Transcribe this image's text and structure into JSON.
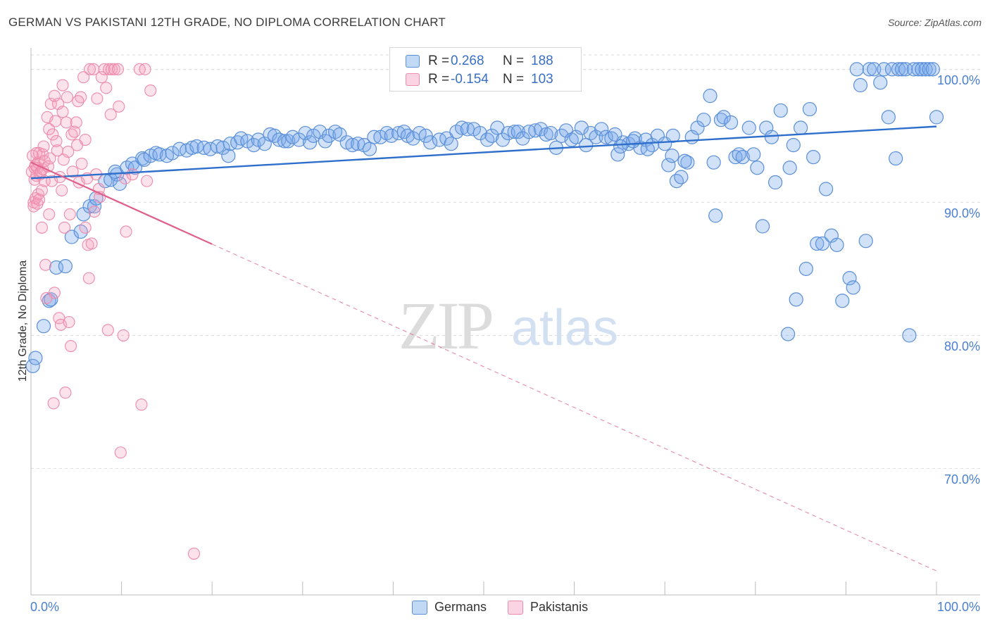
{
  "title": "GERMAN VS PAKISTANI 12TH GRADE, NO DIPLOMA CORRELATION CHART",
  "source": "Source: ZipAtlas.com",
  "watermark": {
    "zip": "ZIP",
    "atlas": "atlas"
  },
  "colors": {
    "german_fill": "rgba(120,170,235,0.35)",
    "german_stroke": "#5b8fd8",
    "german_line": "#2f6fcc",
    "pakistani_fill": "rgba(245,160,190,0.30)",
    "pakistani_stroke": "#ee8aaa",
    "pakistani_line": "#e0608c",
    "tick_label": "#4a7fd0",
    "grid": "#dcdcdc"
  },
  "legend": {
    "rows": [
      {
        "r_label": "R =",
        "r_value": "0.268",
        "n_label": "N =",
        "n_value": "188",
        "series": "german"
      },
      {
        "r_label": "R =",
        "r_value": "-0.154",
        "n_label": "N =",
        "n_value": "103",
        "series": "pakistani"
      }
    ]
  },
  "bottom_legend": [
    "Germans",
    "Pakistanis"
  ],
  "chart_data": {
    "type": "scatter",
    "xlabel": "",
    "ylabel": "12th Grade, No Diploma",
    "xlim": [
      0,
      100
    ],
    "ylim": [
      60.5,
      101.5
    ],
    "x_tick_labels": [
      "0.0%",
      "100.0%"
    ],
    "y_ticks": [
      70,
      80,
      90,
      100
    ],
    "y_tick_labels": [
      "70.0%",
      "80.0%",
      "90.0%",
      "100.0%"
    ],
    "grid": "horizontal dashed",
    "legend_position": "top-center",
    "series": [
      {
        "name": "Germans",
        "trend": {
          "x0": 0,
          "y0": 91.8,
          "x1": 100,
          "y1": 95.7,
          "solid_to_x": 100
        },
        "points": [
          [
            0.2,
            77.7
          ],
          [
            0.5,
            78.3
          ],
          [
            1.4,
            80.7
          ],
          [
            2.0,
            82.6
          ],
          [
            2.2,
            82.7
          ],
          [
            2.8,
            85.1
          ],
          [
            3.8,
            85.2
          ],
          [
            4.5,
            87.4
          ],
          [
            5.5,
            87.8
          ],
          [
            5.8,
            89.1
          ],
          [
            6.5,
            89.7
          ],
          [
            7.0,
            89.7
          ],
          [
            7.2,
            90.3
          ],
          [
            8.2,
            91.6
          ],
          [
            8.8,
            91.7
          ],
          [
            9.5,
            92.1
          ],
          [
            9.8,
            91.4
          ],
          [
            9.3,
            92.3
          ],
          [
            10.6,
            92.6
          ],
          [
            11.2,
            92.9
          ],
          [
            11.5,
            92.6
          ],
          [
            12.3,
            93.3
          ],
          [
            12.5,
            93.2
          ],
          [
            13.2,
            93.5
          ],
          [
            13.8,
            93.7
          ],
          [
            14.2,
            93.6
          ],
          [
            15.0,
            93.5
          ],
          [
            15.6,
            93.7
          ],
          [
            16.4,
            94.0
          ],
          [
            17.2,
            93.9
          ],
          [
            17.8,
            94.1
          ],
          [
            18.3,
            94.2
          ],
          [
            19.1,
            94.1
          ],
          [
            19.8,
            94.0
          ],
          [
            20.6,
            94.2
          ],
          [
            21.2,
            94.1
          ],
          [
            21.8,
            93.5
          ],
          [
            22.0,
            94.4
          ],
          [
            22.8,
            94.5
          ],
          [
            23.2,
            94.8
          ],
          [
            23.9,
            94.6
          ],
          [
            24.6,
            94.3
          ],
          [
            25.1,
            94.7
          ],
          [
            25.8,
            94.4
          ],
          [
            26.4,
            95.1
          ],
          [
            26.9,
            95.0
          ],
          [
            27.4,
            94.7
          ],
          [
            28.0,
            94.6
          ],
          [
            28.4,
            94.6
          ],
          [
            28.9,
            94.9
          ],
          [
            29.6,
            94.7
          ],
          [
            30.3,
            95.2
          ],
          [
            30.8,
            94.5
          ],
          [
            31.2,
            95.0
          ],
          [
            31.9,
            95.3
          ],
          [
            32.5,
            94.6
          ],
          [
            32.9,
            95.0
          ],
          [
            33.6,
            95.3
          ],
          [
            34.1,
            95.1
          ],
          [
            34.9,
            94.5
          ],
          [
            35.5,
            94.3
          ],
          [
            36.1,
            94.4
          ],
          [
            36.8,
            94.3
          ],
          [
            37.4,
            94.0
          ],
          [
            37.9,
            94.9
          ],
          [
            38.6,
            94.9
          ],
          [
            39.3,
            95.2
          ],
          [
            39.8,
            95.0
          ],
          [
            40.6,
            95.2
          ],
          [
            41.2,
            95.3
          ],
          [
            41.6,
            95.0
          ],
          [
            42.2,
            94.8
          ],
          [
            42.9,
            95.2
          ],
          [
            43.6,
            95.0
          ],
          [
            44.1,
            94.5
          ],
          [
            45.1,
            94.7
          ],
          [
            45.9,
            94.8
          ],
          [
            46.4,
            94.4
          ],
          [
            47.0,
            95.3
          ],
          [
            47.6,
            95.6
          ],
          [
            48.2,
            95.5
          ],
          [
            48.9,
            95.5
          ],
          [
            49.6,
            95.2
          ],
          [
            50.4,
            94.7
          ],
          [
            50.9,
            95.0
          ],
          [
            51.5,
            95.6
          ],
          [
            52.1,
            94.7
          ],
          [
            52.7,
            95.2
          ],
          [
            53.4,
            95.3
          ],
          [
            53.8,
            95.3
          ],
          [
            54.3,
            94.8
          ],
          [
            55.0,
            95.3
          ],
          [
            55.7,
            95.4
          ],
          [
            56.3,
            95.5
          ],
          [
            56.9,
            95.1
          ],
          [
            57.4,
            95.2
          ],
          [
            58.0,
            94.1
          ],
          [
            58.6,
            95.0
          ],
          [
            59.1,
            95.4
          ],
          [
            59.7,
            94.7
          ],
          [
            60.2,
            94.9
          ],
          [
            60.8,
            95.6
          ],
          [
            61.3,
            94.3
          ],
          [
            61.8,
            95.2
          ],
          [
            62.4,
            94.9
          ],
          [
            63.0,
            95.5
          ],
          [
            63.5,
            94.9
          ],
          [
            64.1,
            94.8
          ],
          [
            64.8,
            93.6
          ],
          [
            65.4,
            94.5
          ],
          [
            66.0,
            94.4
          ],
          [
            66.7,
            94.8
          ],
          [
            67.3,
            94.1
          ],
          [
            67.9,
            94.7
          ],
          [
            68.6,
            94.3
          ],
          [
            69.2,
            95.0
          ],
          [
            70.0,
            94.4
          ],
          [
            70.4,
            92.8
          ],
          [
            70.8,
            93.5
          ],
          [
            71.3,
            91.6
          ],
          [
            71.8,
            91.9
          ],
          [
            72.5,
            93.0
          ],
          [
            73.0,
            94.9
          ],
          [
            73.6,
            95.6
          ],
          [
            74.3,
            96.2
          ],
          [
            75.0,
            98.0
          ],
          [
            75.4,
            93.0
          ],
          [
            75.6,
            89.0
          ],
          [
            76.2,
            96.2
          ],
          [
            76.5,
            96.4
          ],
          [
            77.3,
            96.0
          ],
          [
            77.8,
            93.4
          ],
          [
            78.2,
            93.6
          ],
          [
            78.6,
            93.4
          ],
          [
            79.3,
            95.6
          ],
          [
            79.8,
            93.6
          ],
          [
            80.2,
            92.6
          ],
          [
            80.8,
            88.2
          ],
          [
            81.2,
            95.6
          ],
          [
            81.8,
            94.9
          ],
          [
            82.2,
            91.5
          ],
          [
            82.8,
            96.9
          ],
          [
            83.6,
            80.1
          ],
          [
            83.8,
            92.6
          ],
          [
            84.2,
            94.3
          ],
          [
            84.5,
            82.7
          ],
          [
            85.0,
            95.6
          ],
          [
            85.6,
            85.0
          ],
          [
            86.0,
            97.0
          ],
          [
            86.4,
            93.4
          ],
          [
            86.8,
            86.9
          ],
          [
            87.4,
            86.9
          ],
          [
            87.8,
            91.0
          ],
          [
            88.4,
            87.5
          ],
          [
            89.0,
            86.8
          ],
          [
            89.6,
            82.6
          ],
          [
            90.4,
            84.3
          ],
          [
            90.8,
            83.6
          ],
          [
            91.2,
            100.0
          ],
          [
            91.6,
            98.8
          ],
          [
            92.2,
            87.1
          ],
          [
            92.6,
            100.0
          ],
          [
            93.1,
            100.0
          ],
          [
            93.8,
            99.0
          ],
          [
            94.2,
            100.0
          ],
          [
            94.7,
            96.4
          ],
          [
            95.1,
            100.0
          ],
          [
            95.5,
            93.3
          ],
          [
            95.8,
            100.0
          ],
          [
            96.2,
            100.0
          ],
          [
            96.6,
            100.0
          ],
          [
            97.0,
            80.0
          ],
          [
            97.5,
            100.0
          ],
          [
            98.0,
            100.0
          ],
          [
            98.4,
            100.0
          ],
          [
            98.8,
            100.0
          ],
          [
            99.2,
            100.0
          ],
          [
            99.6,
            100.0
          ],
          [
            100.0,
            96.4
          ],
          [
            64.5,
            95.1
          ],
          [
            65.1,
            94.2
          ],
          [
            66.5,
            94.6
          ],
          [
            68.1,
            94.0
          ],
          [
            70.9,
            95.0
          ],
          [
            72.2,
            93.1
          ]
        ]
      },
      {
        "name": "Pakistanis",
        "trend": {
          "x0": 0,
          "y0": 93.0,
          "x1": 100,
          "y1": 62.3,
          "solid_to_x": 20
        },
        "points": [
          [
            0.1,
            92.3
          ],
          [
            0.2,
            93.5
          ],
          [
            0.3,
            90.0
          ],
          [
            0.3,
            89.7
          ],
          [
            0.4,
            91.7
          ],
          [
            0.4,
            92.6
          ],
          [
            0.5,
            90.3
          ],
          [
            0.5,
            92.8
          ],
          [
            0.6,
            93.7
          ],
          [
            0.6,
            92.0
          ],
          [
            0.7,
            89.9
          ],
          [
            0.7,
            92.6
          ],
          [
            0.8,
            90.6
          ],
          [
            0.8,
            93.0
          ],
          [
            0.9,
            90.2
          ],
          [
            0.9,
            93.7
          ],
          [
            1.0,
            92.1
          ],
          [
            1.1,
            92.3
          ],
          [
            1.2,
            90.9
          ],
          [
            1.3,
            93.6
          ],
          [
            1.3,
            92.5
          ],
          [
            1.4,
            94.2
          ],
          [
            1.5,
            91.6
          ],
          [
            1.5,
            93.1
          ],
          [
            1.6,
            85.3
          ],
          [
            1.7,
            82.8
          ],
          [
            1.8,
            96.4
          ],
          [
            1.9,
            92.7
          ],
          [
            2.0,
            89.1
          ],
          [
            2.0,
            95.5
          ],
          [
            2.1,
            93.3
          ],
          [
            2.2,
            97.4
          ],
          [
            2.3,
            91.6
          ],
          [
            2.4,
            95.1
          ],
          [
            2.5,
            74.9
          ],
          [
            2.6,
            83.2
          ],
          [
            2.7,
            96.1
          ],
          [
            2.8,
            94.6
          ],
          [
            2.9,
            93.9
          ],
          [
            3.0,
            97.4
          ],
          [
            3.1,
            81.3
          ],
          [
            3.2,
            91.9
          ],
          [
            3.3,
            80.8
          ],
          [
            3.4,
            90.9
          ],
          [
            3.5,
            98.8
          ],
          [
            3.6,
            93.2
          ],
          [
            3.7,
            88.1
          ],
          [
            3.8,
            75.7
          ],
          [
            3.9,
            96.0
          ],
          [
            4.0,
            97.9
          ],
          [
            4.1,
            93.8
          ],
          [
            4.2,
            81.0
          ],
          [
            4.3,
            89.1
          ],
          [
            4.4,
            79.2
          ],
          [
            4.5,
            95.1
          ],
          [
            4.6,
            92.3
          ],
          [
            4.8,
            95.3
          ],
          [
            5.0,
            96.0
          ],
          [
            5.1,
            94.3
          ],
          [
            5.3,
            91.5
          ],
          [
            5.5,
            97.9
          ],
          [
            5.6,
            92.9
          ],
          [
            5.8,
            99.4
          ],
          [
            6.0,
            88.1
          ],
          [
            6.0,
            94.7
          ],
          [
            6.2,
            91.8
          ],
          [
            6.3,
            86.8
          ],
          [
            6.4,
            84.3
          ],
          [
            6.5,
            100.0
          ],
          [
            6.7,
            86.9
          ],
          [
            6.9,
            100.0
          ],
          [
            7.0,
            89.3
          ],
          [
            7.2,
            92.1
          ],
          [
            7.3,
            97.8
          ],
          [
            7.5,
            91.0
          ],
          [
            7.6,
            90.4
          ],
          [
            7.8,
            99.4
          ],
          [
            8.1,
            100.0
          ],
          [
            8.3,
            98.6
          ],
          [
            8.5,
            80.4
          ],
          [
            8.6,
            100.0
          ],
          [
            8.8,
            96.6
          ],
          [
            8.9,
            100.0
          ],
          [
            9.2,
            100.0
          ],
          [
            9.6,
            100.0
          ],
          [
            9.7,
            97.2
          ],
          [
            9.9,
            71.2
          ],
          [
            10.2,
            80.0
          ],
          [
            10.4,
            91.8
          ],
          [
            10.5,
            87.8
          ],
          [
            11.2,
            92.1
          ],
          [
            12.0,
            100.0
          ],
          [
            12.2,
            74.8
          ],
          [
            12.6,
            100.0
          ],
          [
            12.8,
            91.6
          ],
          [
            13.2,
            98.4
          ],
          [
            18.0,
            63.6
          ],
          [
            1.2,
            88.1
          ],
          [
            2.6,
            98.0
          ],
          [
            3.5,
            96.8
          ],
          [
            5.2,
            97.6
          ]
        ]
      }
    ]
  }
}
